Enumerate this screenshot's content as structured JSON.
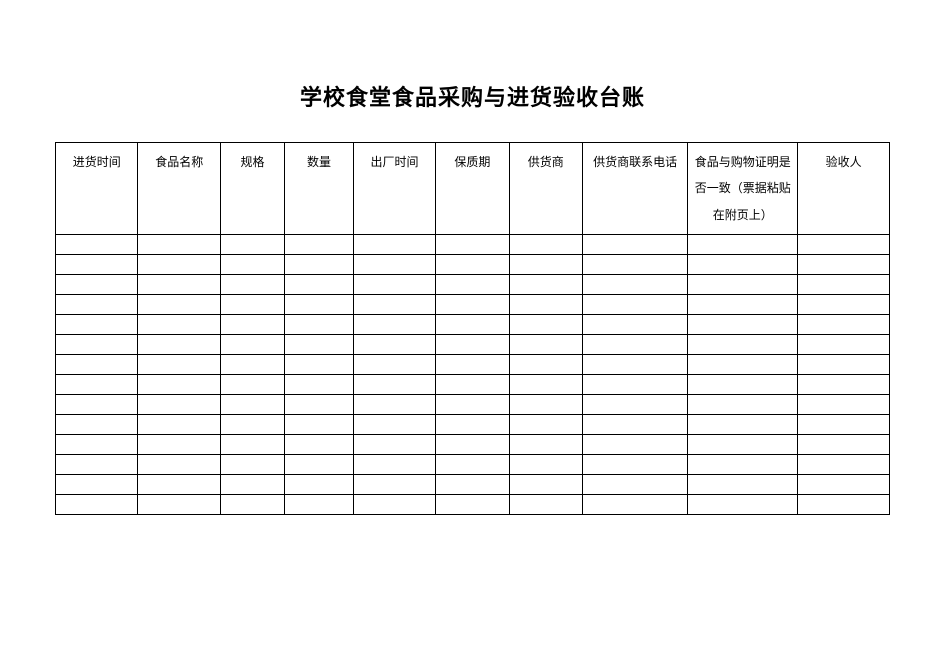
{
  "title": "学校食堂食品采购与进货验收台账",
  "table": {
    "columns": [
      {
        "label": "进货时间",
        "width": "9%"
      },
      {
        "label": "食品名称",
        "width": "9%"
      },
      {
        "label": "规格",
        "width": "7%"
      },
      {
        "label": "数量",
        "width": "7.5%"
      },
      {
        "label": "出厂时间",
        "width": "9%"
      },
      {
        "label": "保质期",
        "width": "8%"
      },
      {
        "label": "供货商",
        "width": "8%"
      },
      {
        "label": "供货商联系电话",
        "width": "11.5%"
      },
      {
        "label": "食品与购物证明是否一致（票据粘贴在附页上）",
        "width": "12%"
      },
      {
        "label": "验收人",
        "width": "10%"
      }
    ],
    "rowCount": 14,
    "border_color": "#000000",
    "background_color": "#ffffff"
  }
}
